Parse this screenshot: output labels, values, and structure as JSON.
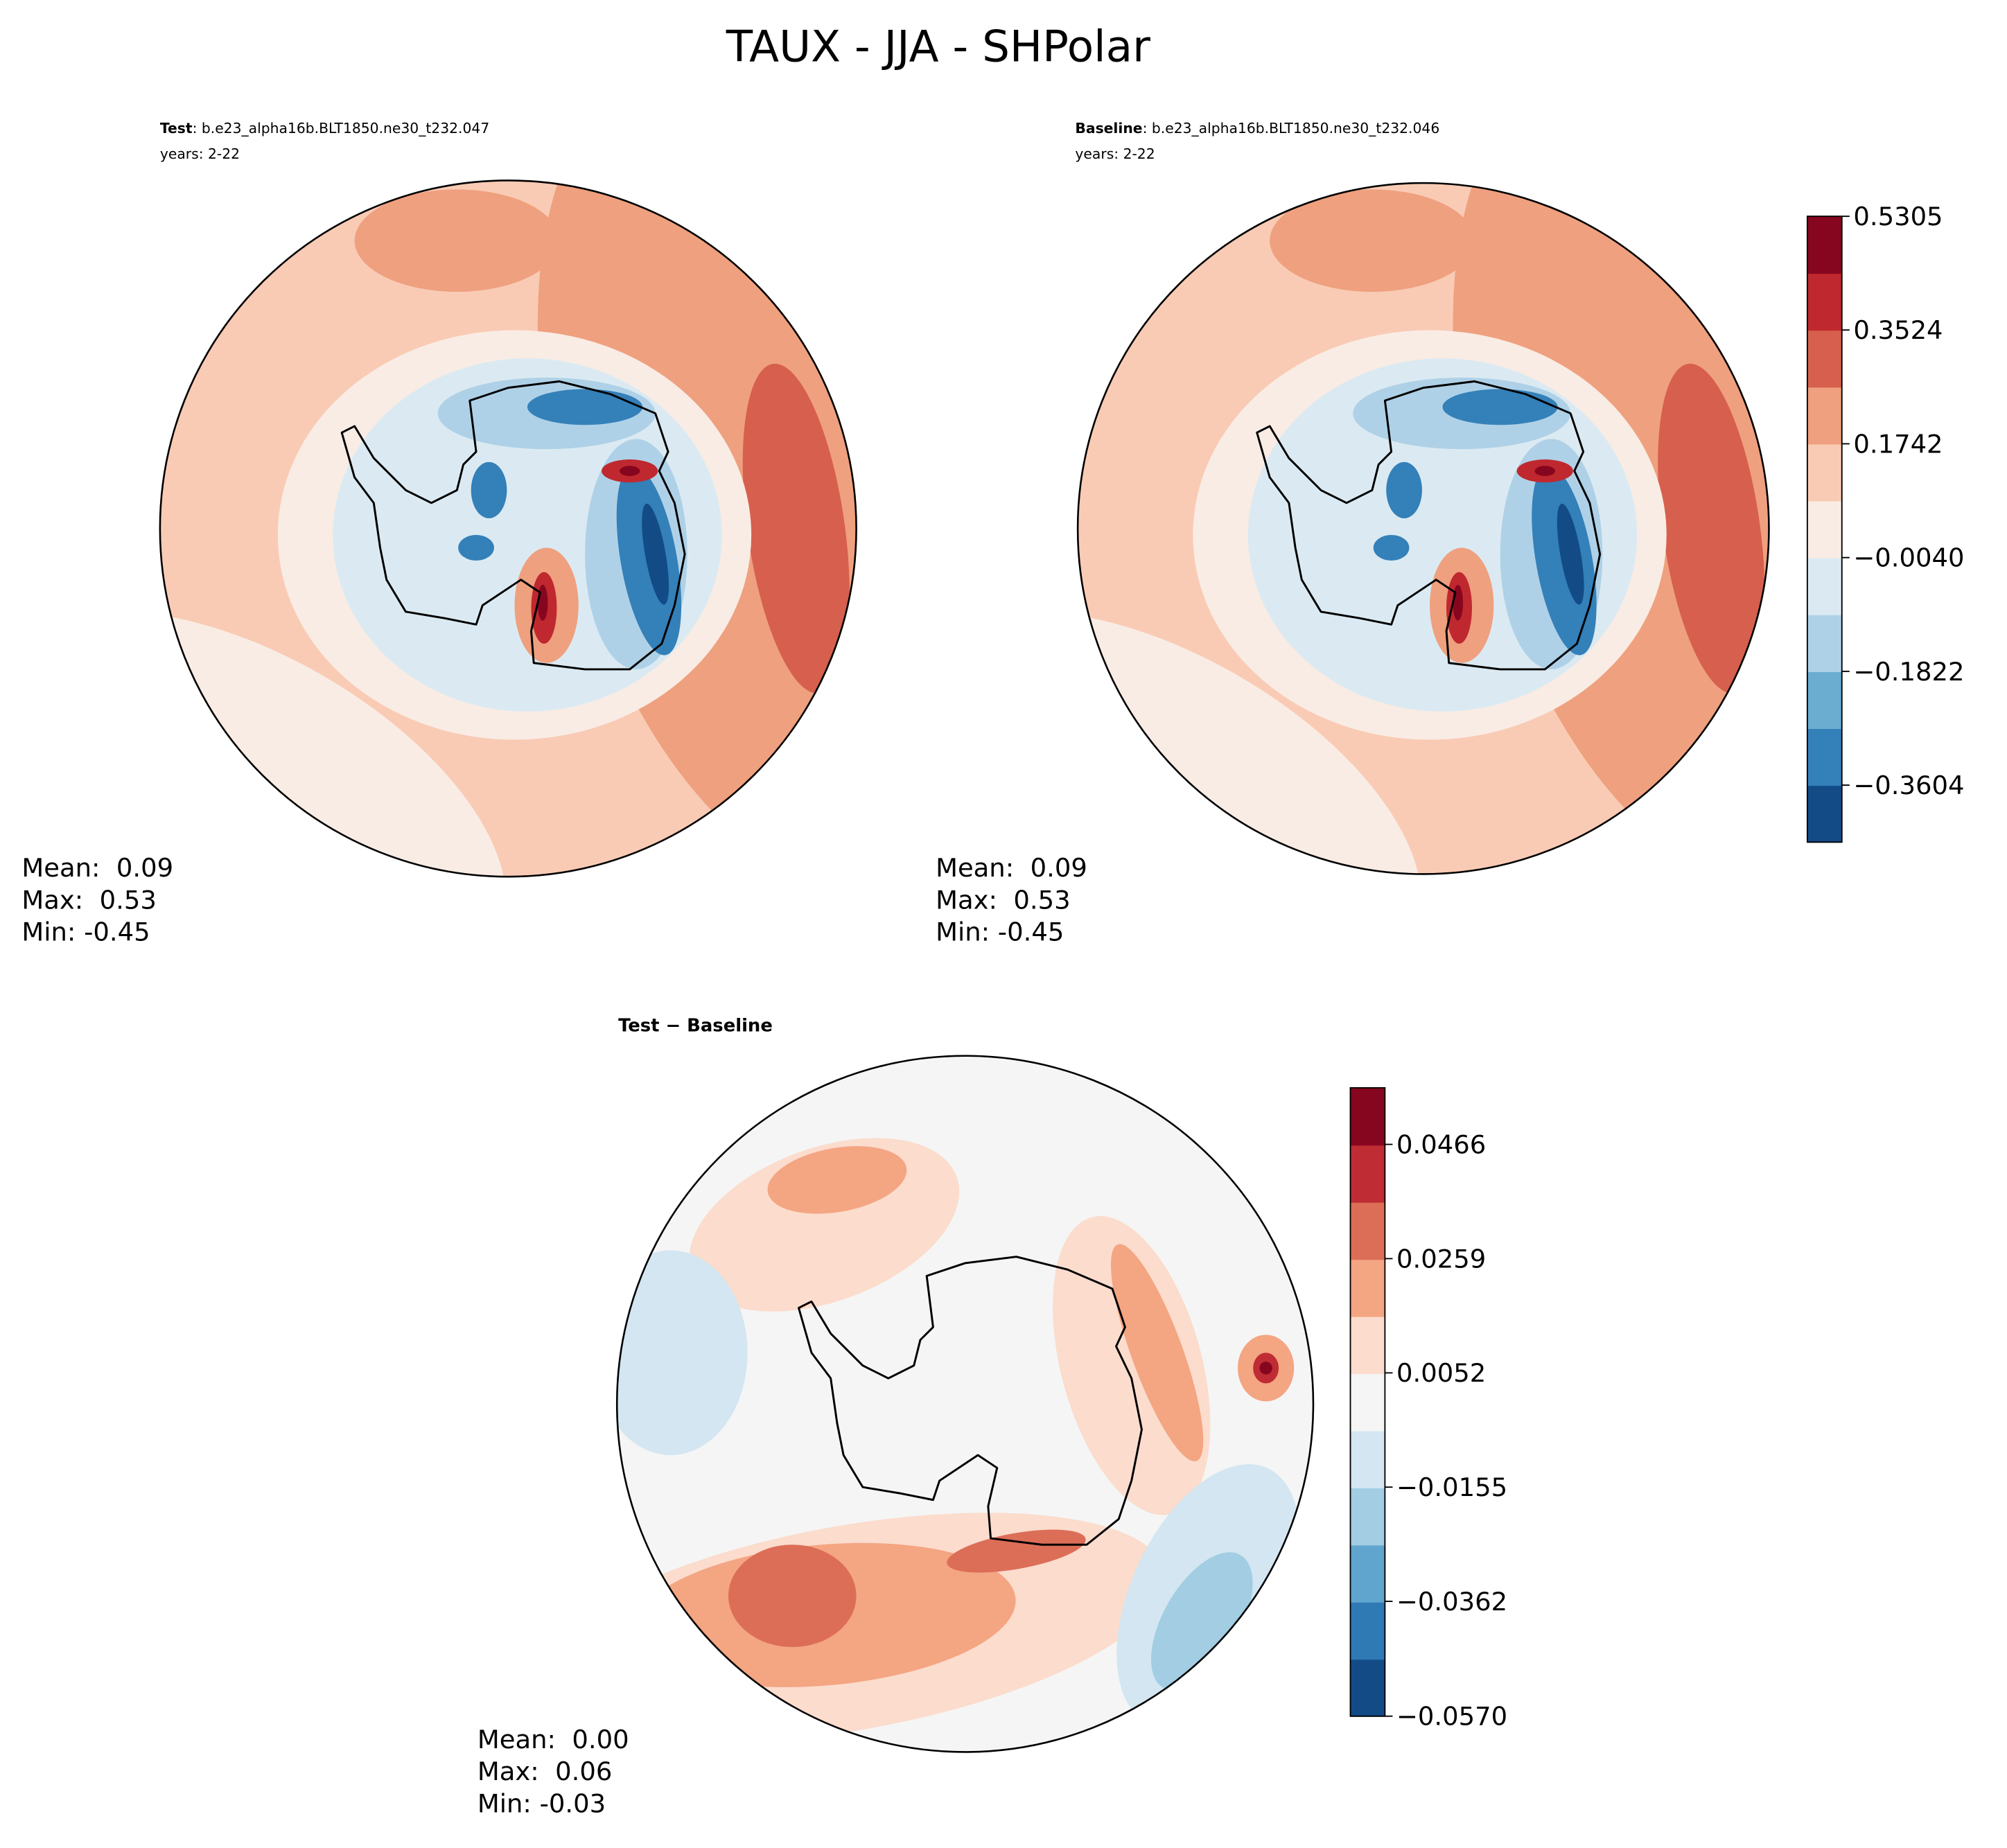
{
  "title": "TAUX - JJA - SHPolar",
  "chart_data": [
    {
      "type": "contour",
      "title": "Test",
      "case": ": b.e23_alpha16b.BLT1850.ne30_t232.047",
      "years": "years: 2-22",
      "stats": [
        "Mean:  0.09",
        "Max:  0.53",
        "Min: -0.45"
      ]
    },
    {
      "type": "contour",
      "title": "Baseline",
      "case": ": b.e23_alpha16b.BLT1850.ne30_t232.046",
      "years": "years: 2-22",
      "stats": [
        "Mean:  0.09",
        "Max:  0.53",
        "Min: -0.45"
      ],
      "colorbar": {
        "colors": [
          "#134b87",
          "#3480b9",
          "#6bacd1",
          "#afd1e7",
          "#dbeaf2",
          "#f9ece4",
          "#f9cbb5",
          "#efa07f",
          "#d6604d",
          "#c0282f",
          "#87061f"
        ],
        "ylim": [
          -0.4496,
          0.5305
        ],
        "yticks": [
          0.5305,
          0.3524,
          0.1742,
          {
            "value": -0.004,
            "label": "−0.0040"
          },
          {
            "value": -0.1822,
            "label": "−0.1822"
          },
          {
            "value": -0.3604,
            "label": "−0.3604"
          }
        ]
      }
    },
    {
      "type": "contour",
      "title": "Test − Baseline",
      "stats": [
        "Mean:  0.00",
        "Max:  0.06",
        "Min: -0.03"
      ],
      "colorbar": {
        "colors": [
          "#134b87",
          "#2f79b5",
          "#5fa5cd",
          "#a2cde3",
          "#d3e6f1",
          "#f5f5f5",
          "#fbdccd",
          "#f4a582",
          "#dc6e57",
          "#bf2c33",
          "#87061f"
        ],
        "ylim": [
          -0.057,
          0.05685
        ],
        "yticks": [
          0.0466,
          0.0259,
          0.0052,
          {
            "value": -0.0155,
            "label": "−0.0155"
          },
          {
            "value": -0.0362,
            "label": "−0.0362"
          },
          {
            "value": -0.057,
            "label": "−0.0570"
          }
        ]
      }
    }
  ]
}
